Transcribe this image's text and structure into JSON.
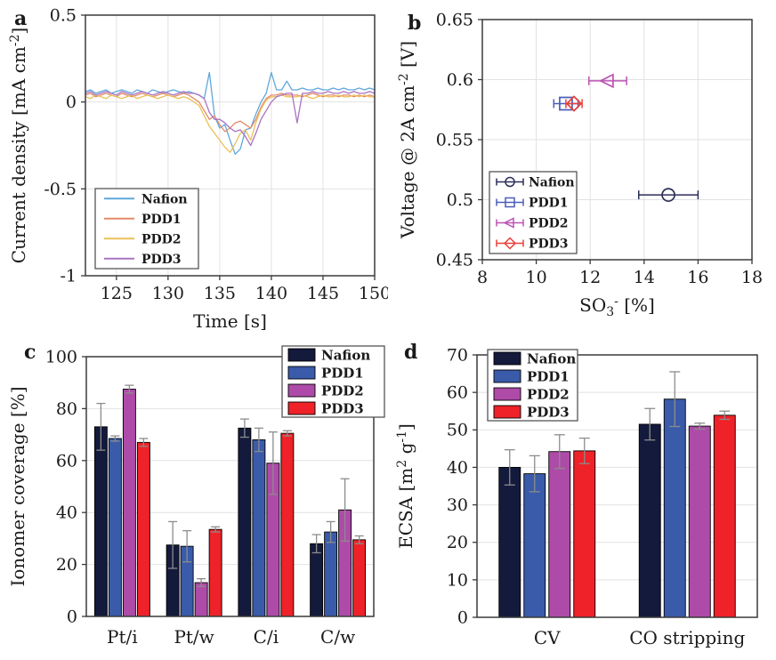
{
  "figure": {
    "description": "Four-panel electrochemistry figure comparing Nafion, PDD1, PDD2, PDD3 ionomers",
    "series_names": [
      "Nafion",
      "PDD1",
      "PDD2",
      "PDD3"
    ],
    "colors": {
      "axis": "#3a3a3a",
      "grid": "#e2e2e2",
      "errorbar_gray": "#8c8c8c",
      "text": "#1a1a1a",
      "bar_nafion": "#141a3c",
      "bar_pdd1": "#3a5baa",
      "bar_pdd2": "#ae4ba8",
      "bar_pdd3": "#ee2228"
    }
  },
  "chart_data": [
    {
      "panel_letter": "a",
      "type": "line",
      "title": "",
      "xlabel": "Time [s]",
      "ylabel": "Current density [mA cm^-2]",
      "ylabel_rich": [
        {
          "t": "Current density [mA cm"
        },
        {
          "t": "-2",
          "sup": true
        },
        {
          "t": "]"
        }
      ],
      "xlim": [
        122,
        150
      ],
      "ylim": [
        -1,
        0.5
      ],
      "xticks": [
        125,
        130,
        135,
        140,
        145,
        150
      ],
      "xtick_labels": [
        "125",
        "130",
        "135",
        "140",
        "145",
        "150"
      ],
      "yticks": [
        -1,
        -0.5,
        0,
        0.5
      ],
      "ytick_labels": [
        "-1",
        "-0.5",
        "0",
        "0.5"
      ],
      "grid": true,
      "legend": {
        "position": "bottom-left",
        "style": "line",
        "entries": [
          "Nafion",
          "PDD1",
          "PDD2",
          "PDD3"
        ]
      },
      "series": [
        {
          "name": "Nafion",
          "color": "#5fa8dc",
          "t0": 122,
          "dt": 0.5,
          "y": [
            0.06,
            0.07,
            0.05,
            0.06,
            0.07,
            0.05,
            0.06,
            0.07,
            0.06,
            0.05,
            0.07,
            0.06,
            0.05,
            0.07,
            0.06,
            0.05,
            0.06,
            0.07,
            0.06,
            0.05,
            0.06,
            0.05,
            0.04,
            0.02,
            0.17,
            -0.08,
            -0.15,
            -0.13,
            -0.22,
            -0.3,
            -0.27,
            -0.16,
            -0.15,
            -0.07,
            0.0,
            0.05,
            0.17,
            0.07,
            0.07,
            0.12,
            0.07,
            0.07,
            0.08,
            0.07,
            0.07,
            0.08,
            0.07,
            0.07,
            0.08,
            0.07,
            0.08,
            0.07,
            0.07,
            0.08,
            0.07,
            0.08,
            0.07
          ]
        },
        {
          "name": "PDD1",
          "color": "#e58a68",
          "t0": 122,
          "dt": 0.5,
          "y": [
            0.04,
            0.05,
            0.03,
            0.04,
            0.05,
            0.04,
            0.03,
            0.05,
            0.04,
            0.03,
            0.04,
            0.05,
            0.04,
            0.03,
            0.04,
            0.05,
            0.04,
            0.03,
            0.04,
            0.05,
            0.04,
            0.02,
            0.0,
            -0.05,
            -0.1,
            -0.08,
            -0.13,
            -0.17,
            -0.15,
            -0.12,
            -0.11,
            -0.13,
            -0.15,
            -0.1,
            -0.03,
            0.02,
            0.04,
            0.04,
            0.05,
            0.04,
            0.04,
            0.04,
            0.03,
            0.04,
            0.05,
            0.04,
            0.03,
            0.04,
            0.04,
            0.03,
            0.04,
            0.04,
            0.03,
            0.04,
            0.03,
            0.04,
            0.03
          ]
        },
        {
          "name": "PDD2",
          "color": "#eac159",
          "t0": 122,
          "dt": 0.5,
          "y": [
            0.03,
            0.02,
            0.04,
            0.03,
            0.02,
            0.04,
            0.03,
            0.02,
            0.03,
            0.04,
            0.02,
            0.03,
            0.04,
            0.03,
            0.02,
            0.03,
            0.04,
            0.03,
            0.02,
            0.03,
            0.02,
            0.0,
            -0.02,
            -0.08,
            -0.14,
            -0.18,
            -0.22,
            -0.26,
            -0.29,
            -0.24,
            -0.18,
            -0.16,
            -0.22,
            -0.12,
            -0.04,
            0.01,
            0.03,
            0.03,
            0.04,
            0.03,
            0.03,
            0.03,
            0.04,
            0.03,
            0.02,
            0.03,
            0.04,
            0.03,
            0.03,
            0.04,
            0.03,
            0.03,
            0.04,
            0.03,
            0.04,
            0.03,
            0.03
          ]
        },
        {
          "name": "PDD3",
          "color": "#a873c2",
          "t0": 122,
          "dt": 0.5,
          "y": [
            0.05,
            0.06,
            0.04,
            0.05,
            0.06,
            0.05,
            0.04,
            0.06,
            0.05,
            0.04,
            0.05,
            0.06,
            0.05,
            0.04,
            0.05,
            0.06,
            0.05,
            0.04,
            0.05,
            0.06,
            0.05,
            0.05,
            0.04,
            0.02,
            -0.06,
            -0.1,
            -0.1,
            -0.12,
            -0.15,
            -0.17,
            -0.16,
            -0.2,
            -0.25,
            -0.18,
            -0.1,
            -0.05,
            0.0,
            0.03,
            0.04,
            0.05,
            0.05,
            -0.12,
            0.05,
            0.05,
            0.06,
            0.05,
            0.05,
            0.06,
            0.05,
            0.05,
            0.06,
            0.05,
            0.06,
            0.05,
            0.05,
            0.06,
            0.05
          ]
        }
      ]
    },
    {
      "panel_letter": "b",
      "type": "scatter",
      "title": "",
      "xlabel": "SO3- [%]",
      "xlabel_rich": [
        {
          "t": "SO"
        },
        {
          "t": "3",
          "sub": true
        },
        {
          "t": "-",
          "sup": true
        },
        {
          "t": " [%]"
        }
      ],
      "ylabel": "Voltage @ 2A cm^-2 [V]",
      "ylabel_rich": [
        {
          "t": "Voltage @ 2A cm"
        },
        {
          "t": "-2",
          "sup": true
        },
        {
          "t": " [V]"
        }
      ],
      "xlim": [
        8,
        18
      ],
      "ylim": [
        0.45,
        0.65
      ],
      "xticks": [
        8,
        10,
        12,
        14,
        16,
        18
      ],
      "xtick_labels": [
        "8",
        "10",
        "12",
        "14",
        "16",
        "18"
      ],
      "yticks": [
        0.45,
        0.5,
        0.55,
        0.6,
        0.65
      ],
      "ytick_labels": [
        "0.45",
        "0.5",
        "0.55",
        "0.6",
        "0.65"
      ],
      "grid": true,
      "legend": {
        "position": "bottom-left",
        "style": "errorbar-marker",
        "entries": [
          "Nafion",
          "PDD1",
          "PDD2",
          "PDD3"
        ]
      },
      "points": [
        {
          "name": "Nafion",
          "marker": "circle",
          "color": "#2b2e58",
          "x": 14.9,
          "y": 0.504,
          "xerr": 1.1
        },
        {
          "name": "PDD1",
          "marker": "square",
          "color": "#4a5cb8",
          "x": 11.1,
          "y": 0.58,
          "xerr": 0.45
        },
        {
          "name": "PDD2",
          "marker": "triangle-left",
          "color": "#bc53b4",
          "x": 12.65,
          "y": 0.599,
          "xerr": 0.7
        },
        {
          "name": "PDD3",
          "marker": "diamond",
          "color": "#e8403a",
          "x": 11.4,
          "y": 0.58,
          "xerr": 0.3
        }
      ]
    },
    {
      "panel_letter": "c",
      "type": "bar",
      "title": "",
      "xlabel": "",
      "ylabel": "Ionomer coverage [%]",
      "categories": [
        "Pt/i",
        "Pt/w",
        "C/i",
        "C/w"
      ],
      "ylim": [
        0,
        100
      ],
      "yticks": [
        0,
        20,
        40,
        60,
        80,
        100
      ],
      "ytick_labels": [
        "0",
        "20",
        "40",
        "60",
        "80",
        "100"
      ],
      "grid": true,
      "legend": {
        "position": "top-right",
        "style": "swatch",
        "entries": [
          "Nafion",
          "PDD1",
          "PDD2",
          "PDD3"
        ]
      },
      "series": [
        {
          "name": "Nafion",
          "color": "#141a3c",
          "values": [
            73,
            27.5,
            72.5,
            28
          ],
          "errors": [
            9,
            9,
            3.5,
            3.5
          ]
        },
        {
          "name": "PDD1",
          "color": "#3a5baa",
          "values": [
            68.5,
            27,
            68,
            32.5
          ],
          "errors": [
            1,
            6,
            4.5,
            4
          ]
        },
        {
          "name": "PDD2",
          "color": "#ae4ba8",
          "values": [
            87.5,
            13,
            59,
            41
          ],
          "errors": [
            1.5,
            1.5,
            12,
            12
          ]
        },
        {
          "name": "PDD3",
          "color": "#ee2228",
          "values": [
            67,
            33.5,
            70.5,
            29.5
          ],
          "errors": [
            1.5,
            1,
            1,
            1.5
          ]
        }
      ]
    },
    {
      "panel_letter": "d",
      "type": "bar",
      "title": "",
      "xlabel": "",
      "ylabel": "ECSA [m^2 g^-1]",
      "ylabel_rich": [
        {
          "t": "ECSA [m"
        },
        {
          "t": "2",
          "sup": true
        },
        {
          "t": " g"
        },
        {
          "t": "-1",
          "sup": true
        },
        {
          "t": "]"
        }
      ],
      "categories": [
        "CV",
        "CO stripping"
      ],
      "ylim": [
        0,
        70
      ],
      "yticks": [
        0,
        10,
        20,
        30,
        40,
        50,
        60,
        70
      ],
      "ytick_labels": [
        "0",
        "10",
        "20",
        "30",
        "40",
        "50",
        "60",
        "70"
      ],
      "grid": true,
      "legend": {
        "position": "top-left",
        "style": "swatch",
        "entries": [
          "Nafion",
          "PDD1",
          "PDD2",
          "PDD3"
        ]
      },
      "series": [
        {
          "name": "Nafion",
          "color": "#141a3c",
          "values": [
            40,
            51.5
          ],
          "errors": [
            4.7,
            4.2
          ]
        },
        {
          "name": "PDD1",
          "color": "#3a5baa",
          "values": [
            38.3,
            58.2
          ],
          "errors": [
            4.8,
            7.3
          ]
        },
        {
          "name": "PDD2",
          "color": "#ae4ba8",
          "values": [
            44.2,
            51
          ],
          "errors": [
            4.5,
            0.8
          ]
        },
        {
          "name": "PDD3",
          "color": "#ee2228",
          "values": [
            44.4,
            53.9
          ],
          "errors": [
            3.4,
            1.1
          ]
        }
      ]
    }
  ]
}
